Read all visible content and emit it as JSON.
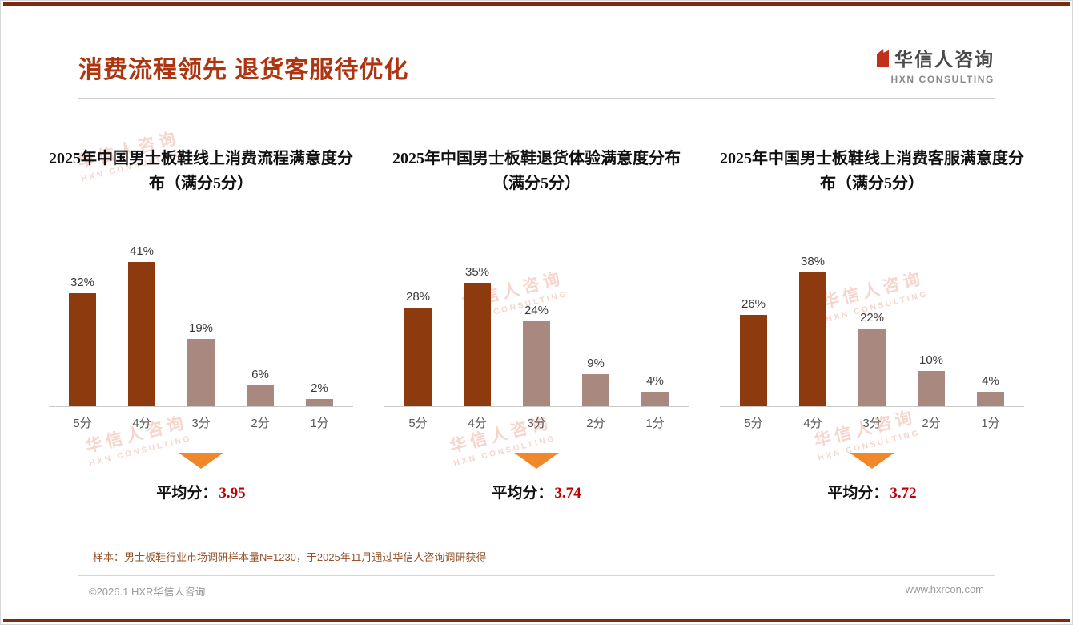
{
  "page": {
    "title": "消费流程领先 退货客服待优化",
    "logo": {
      "name": "华信人咨询",
      "sub": "HXN CONSULTING"
    },
    "note": "样本：男士板鞋行业市场调研样本量N=1230，于2025年11月通过华信人咨询调研获得",
    "footer_left": "©2026.1 HXR华信人咨询",
    "footer_right": "www.hxrcon.com",
    "watermark": {
      "line1": "华信人咨询",
      "line2": "HXN CONSULTING"
    }
  },
  "colors": {
    "title": "#AD3511",
    "bar_dark": "#8C3A0E",
    "bar_light": "#A9897F",
    "arrow": "#F0882B",
    "avg_value": "#C00000",
    "note": "#96522A",
    "rule": "#7E2A12",
    "watermark": "#EFB4A4"
  },
  "chart_data": [
    {
      "type": "bar",
      "title": "2025年中国男士板鞋线上消费流程满意度分布（满分5分）",
      "categories": [
        "5分",
        "4分",
        "3分",
        "2分",
        "1分"
      ],
      "values": [
        32,
        41,
        19,
        6,
        2
      ],
      "unit": "%",
      "ylim": [
        0,
        45
      ],
      "grid": false,
      "legend": "none",
      "color_pattern": [
        "dark",
        "dark",
        "light",
        "light",
        "light"
      ],
      "avg_label": "平均分：",
      "avg_value": "3.95"
    },
    {
      "type": "bar",
      "title": "2025年中国男士板鞋退货体验满意度分布（满分5分）",
      "categories": [
        "5分",
        "4分",
        "3分",
        "2分",
        "1分"
      ],
      "values": [
        28,
        35,
        24,
        9,
        4
      ],
      "unit": "%",
      "ylim": [
        0,
        45
      ],
      "grid": false,
      "legend": "none",
      "color_pattern": [
        "dark",
        "dark",
        "light",
        "light",
        "light"
      ],
      "avg_label": "平均分：",
      "avg_value": "3.74"
    },
    {
      "type": "bar",
      "title": "2025年中国男士板鞋线上消费客服满意度分布（满分5分）",
      "categories": [
        "5分",
        "4分",
        "3分",
        "2分",
        "1分"
      ],
      "values": [
        26,
        38,
        22,
        10,
        4
      ],
      "unit": "%",
      "ylim": [
        0,
        45
      ],
      "grid": false,
      "legend": "none",
      "color_pattern": [
        "dark",
        "dark",
        "light",
        "light",
        "light"
      ],
      "avg_label": "平均分：",
      "avg_value": "3.72"
    }
  ]
}
